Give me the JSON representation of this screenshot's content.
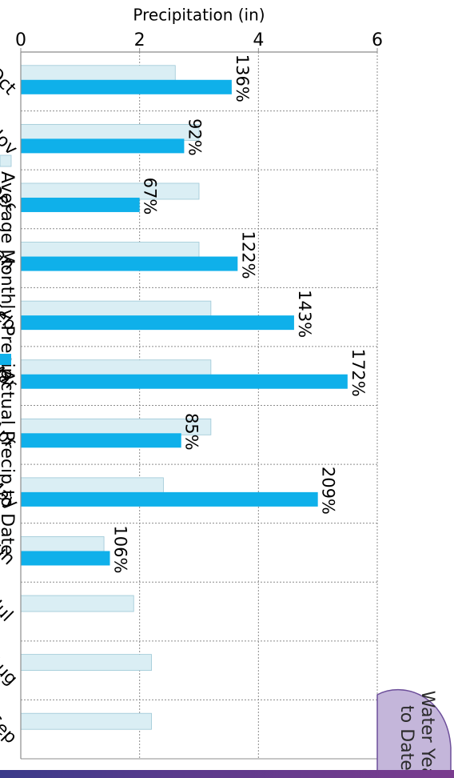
{
  "chart_data": {
    "type": "bar",
    "categories": [
      "Oct",
      "Nov",
      "Dec",
      "Jan",
      "Feb",
      "Mar",
      "Apr",
      "May",
      "Jun",
      "Jul",
      "Aug",
      "Sep"
    ],
    "series": [
      {
        "name": "Average Monthly Precip",
        "color": "#daeef4",
        "values": [
          2.6,
          3.0,
          3.0,
          3.0,
          3.2,
          3.2,
          3.2,
          2.4,
          1.4,
          1.9,
          2.2,
          2.2
        ]
      },
      {
        "name": "Actual Precip to Date",
        "color": "#0fb0ea",
        "values": [
          3.55,
          2.75,
          2.0,
          3.65,
          4.6,
          5.5,
          2.7,
          5.0,
          1.5,
          null,
          null,
          null
        ]
      }
    ],
    "data_labels": [
      "136%",
      "92%",
      "67%",
      "122%",
      "143%",
      "172%",
      "85%",
      "209%",
      "106%",
      null,
      null,
      null
    ],
    "ylabel": "Precipitation (in)",
    "ylim": [
      0,
      6
    ],
    "yticks": [
      0,
      2,
      4,
      6
    ],
    "grid": true,
    "legend": "bottom"
  },
  "callout": {
    "line1": "Water Year",
    "line2": "to Date"
  },
  "colors": {
    "grid": "#8c8c8c",
    "text": "#000000",
    "callout_fill": "#c4b6da",
    "callout_stroke": "#6d4f9a",
    "bar_outline": "#9cc7d6"
  }
}
